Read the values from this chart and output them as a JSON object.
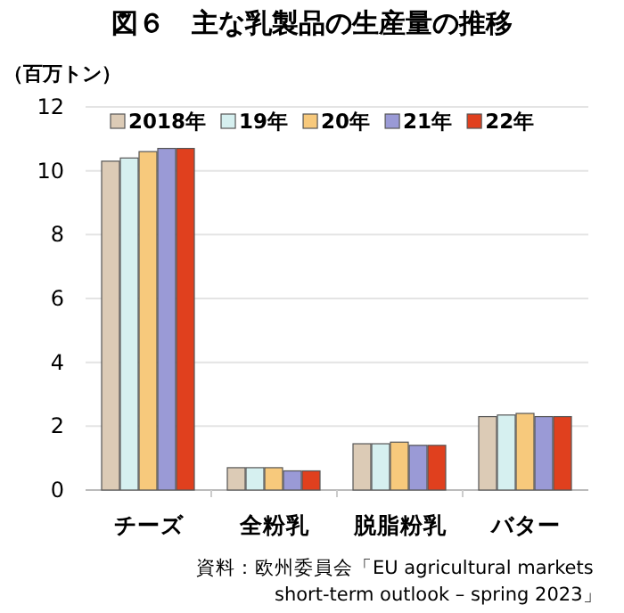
{
  "chart_data": {
    "type": "bar",
    "title": "図６　主な乳製品の生産量の推移",
    "ylabel": "（百万トン）",
    "categories": [
      "チーズ",
      "全粉乳",
      "脱脂粉乳",
      "バター"
    ],
    "series": [
      {
        "name": "2018年",
        "color": "#dccbb6",
        "values": [
          10.3,
          0.7,
          1.45,
          2.3
        ]
      },
      {
        "name": "19年",
        "color": "#d6f0f0",
        "values": [
          10.4,
          0.7,
          1.45,
          2.35
        ]
      },
      {
        "name": "20年",
        "color": "#f7c97c",
        "values": [
          10.6,
          0.7,
          1.5,
          2.4
        ]
      },
      {
        "name": "21年",
        "color": "#9a9ad6",
        "values": [
          10.7,
          0.6,
          1.4,
          2.3
        ]
      },
      {
        "name": "22年",
        "color": "#e0401e",
        "values": [
          10.7,
          0.6,
          1.4,
          2.3
        ]
      }
    ],
    "ylim": [
      0,
      12
    ],
    "yticks": [
      0,
      2,
      4,
      6,
      8,
      10,
      12
    ],
    "grid": "y",
    "legend": "top",
    "annotations": [
      "資料：欧州委員会「EU agricultural markets short-term outlook – spring 2023」"
    ]
  }
}
